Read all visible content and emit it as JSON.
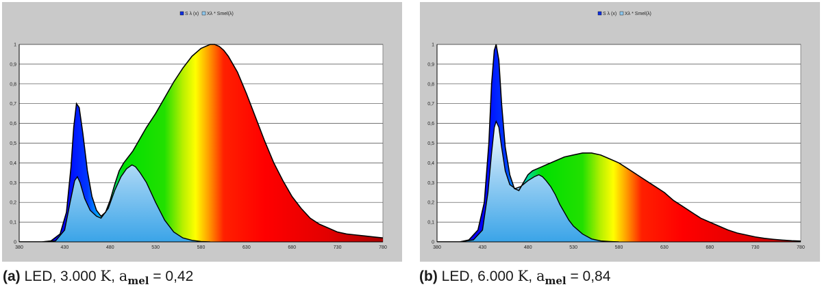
{
  "chart_data": [
    {
      "type": "area",
      "legend": [
        "S λ (x)",
        "Xλ * Smel(λ)"
      ],
      "legend_placement": "top-center",
      "x_ticks": [
        380,
        430,
        480,
        530,
        580,
        630,
        680,
        730,
        780
      ],
      "y_ticks": [
        "0",
        "0,1",
        "0,2",
        "0,3",
        "0,4",
        "0,5",
        "0,6",
        "0,7",
        "0,8",
        "0,9",
        "1"
      ],
      "xlim": [
        380,
        780
      ],
      "ylim": [
        0,
        1
      ],
      "grid": "horizontal",
      "series": [
        {
          "name": "S λ (x)",
          "x": [
            380,
            395,
            405,
            415,
            425,
            432,
            437,
            440,
            443,
            446,
            450,
            455,
            460,
            465,
            470,
            475,
            480,
            485,
            490,
            495,
            500,
            505,
            510,
            515,
            520,
            530,
            540,
            550,
            560,
            570,
            580,
            590,
            595,
            600,
            605,
            610,
            620,
            630,
            640,
            650,
            660,
            670,
            680,
            690,
            700,
            710,
            720,
            730,
            740,
            750,
            760,
            770,
            780
          ],
          "y": [
            0,
            0,
            0,
            0.005,
            0.04,
            0.15,
            0.38,
            0.58,
            0.7,
            0.68,
            0.55,
            0.36,
            0.23,
            0.16,
            0.13,
            0.15,
            0.21,
            0.29,
            0.36,
            0.4,
            0.43,
            0.46,
            0.5,
            0.54,
            0.58,
            0.65,
            0.73,
            0.81,
            0.88,
            0.94,
            0.98,
            1.0,
            1.0,
            0.99,
            0.97,
            0.94,
            0.86,
            0.75,
            0.63,
            0.51,
            0.4,
            0.31,
            0.23,
            0.17,
            0.12,
            0.09,
            0.07,
            0.05,
            0.04,
            0.035,
            0.03,
            0.025,
            0.02
          ]
        },
        {
          "name": "Xλ * Smel(λ)",
          "x": [
            380,
            405,
            420,
            430,
            436,
            441,
            444,
            447,
            452,
            458,
            465,
            470,
            478,
            485,
            492,
            498,
            504,
            508,
            513,
            520,
            530,
            540,
            550,
            560,
            570,
            580,
            590
          ],
          "y": [
            0,
            0,
            0.005,
            0.06,
            0.2,
            0.31,
            0.33,
            0.3,
            0.22,
            0.16,
            0.13,
            0.12,
            0.17,
            0.26,
            0.33,
            0.37,
            0.39,
            0.38,
            0.35,
            0.3,
            0.2,
            0.11,
            0.05,
            0.02,
            0.008,
            0.002,
            0
          ]
        }
      ]
    },
    {
      "type": "area",
      "legend": [
        "S λ (x)",
        "Xλ * Smel(λ)"
      ],
      "legend_placement": "top-center",
      "x_ticks": [
        380,
        430,
        480,
        530,
        580,
        630,
        680,
        730,
        780
      ],
      "y_ticks": [
        "0",
        "0,1",
        "0,2",
        "0,3",
        "0,4",
        "0,5",
        "0,6",
        "0,7",
        "0,8",
        "0,9",
        "1"
      ],
      "xlim": [
        380,
        780
      ],
      "ylim": [
        0,
        1
      ],
      "grid": "horizontal",
      "series": [
        {
          "name": "S λ (x)",
          "x": [
            380,
            405,
            415,
            425,
            432,
            437,
            440,
            443,
            445,
            448,
            451,
            455,
            460,
            465,
            470,
            475,
            480,
            485,
            490,
            495,
            500,
            510,
            520,
            530,
            540,
            550,
            560,
            570,
            580,
            590,
            600,
            610,
            620,
            630,
            640,
            650,
            660,
            670,
            680,
            690,
            700,
            710,
            720,
            730,
            740,
            750,
            760,
            770,
            780
          ],
          "y": [
            0,
            0,
            0.01,
            0.06,
            0.2,
            0.5,
            0.8,
            0.97,
            1.0,
            0.92,
            0.7,
            0.48,
            0.34,
            0.27,
            0.26,
            0.3,
            0.34,
            0.36,
            0.37,
            0.38,
            0.39,
            0.41,
            0.43,
            0.44,
            0.45,
            0.45,
            0.44,
            0.42,
            0.4,
            0.37,
            0.34,
            0.31,
            0.28,
            0.25,
            0.21,
            0.18,
            0.15,
            0.12,
            0.1,
            0.08,
            0.06,
            0.045,
            0.035,
            0.025,
            0.018,
            0.013,
            0.009,
            0.006,
            0.004
          ]
        },
        {
          "name": "Xλ * Smel(λ)",
          "x": [
            380,
            405,
            420,
            430,
            436,
            440,
            443,
            445,
            448,
            451,
            455,
            460,
            466,
            472,
            480,
            487,
            492,
            496,
            500,
            505,
            510,
            515,
            520,
            525,
            530,
            540,
            550,
            560,
            570,
            580
          ],
          "y": [
            0,
            0,
            0.01,
            0.06,
            0.25,
            0.45,
            0.58,
            0.61,
            0.58,
            0.48,
            0.36,
            0.29,
            0.27,
            0.28,
            0.31,
            0.33,
            0.34,
            0.33,
            0.31,
            0.28,
            0.24,
            0.19,
            0.15,
            0.11,
            0.08,
            0.04,
            0.015,
            0.005,
            0.002,
            0
          ]
        }
      ]
    }
  ],
  "captions": [
    {
      "label": "(a)",
      "text": " LED, 3.000 ",
      "unit": "K",
      "sep": ", ",
      "sym": "a",
      "sub": "mel",
      "value": " = 0,42"
    },
    {
      "label": "(b)",
      "text": " LED, 6.000 ",
      "unit": "K",
      "sep": ", ",
      "sym": "a",
      "sub": "mel",
      "value": " = 0,84"
    }
  ]
}
